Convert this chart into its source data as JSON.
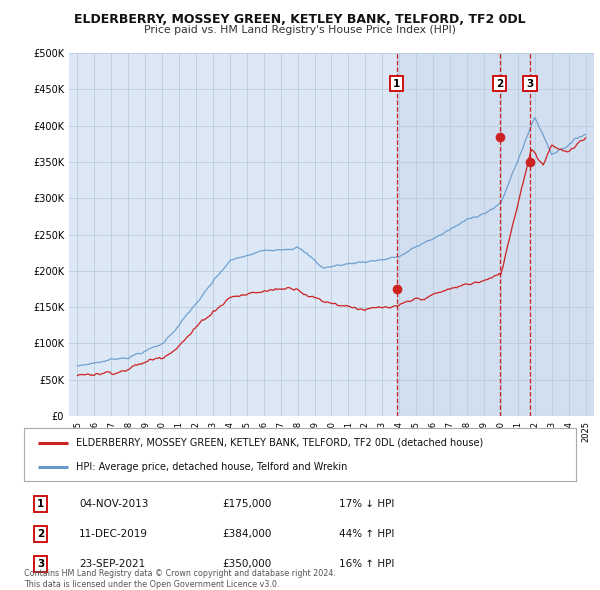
{
  "title": "ELDERBERRY, MOSSEY GREEN, KETLEY BANK, TELFORD, TF2 0DL",
  "subtitle": "Price paid vs. HM Land Registry's House Price Index (HPI)",
  "bg_color": "#f0f4f8",
  "plot_bg": "#dce8f5",
  "red_color": "#cc2222",
  "blue_color": "#6699cc",
  "grid_color": "#bbccdd",
  "sale_markers": [
    {
      "label": "1",
      "date": 2013.84,
      "price": 175000
    },
    {
      "label": "2",
      "date": 2019.94,
      "price": 384000
    },
    {
      "label": "3",
      "date": 2021.72,
      "price": 350000
    }
  ],
  "legend_entries": [
    "ELDERBERRY, MOSSEY GREEN, KETLEY BANK, TELFORD, TF2 0DL (detached house)",
    "HPI: Average price, detached house, Telford and Wrekin"
  ],
  "table_rows": [
    {
      "num": "1",
      "date": "04-NOV-2013",
      "price": "£175,000",
      "hpi": "17% ↓ HPI"
    },
    {
      "num": "2",
      "date": "11-DEC-2019",
      "price": "£384,000",
      "hpi": "44% ↑ HPI"
    },
    {
      "num": "3",
      "date": "23-SEP-2021",
      "price": "£350,000",
      "hpi": "16% ↑ HPI"
    }
  ],
  "footer": "Contains HM Land Registry data © Crown copyright and database right 2024.\nThis data is licensed under the Open Government Licence v3.0.",
  "ylim": [
    0,
    500000
  ],
  "yticks": [
    0,
    50000,
    100000,
    150000,
    200000,
    250000,
    300000,
    350000,
    400000,
    450000,
    500000
  ],
  "xlim": [
    1994.5,
    2025.5
  ],
  "xticks": [
    1995,
    1996,
    1997,
    1998,
    1999,
    2000,
    2001,
    2002,
    2003,
    2004,
    2005,
    2006,
    2007,
    2008,
    2009,
    2010,
    2011,
    2012,
    2013,
    2014,
    2015,
    2016,
    2017,
    2018,
    2019,
    2020,
    2021,
    2022,
    2023,
    2024,
    2025
  ]
}
